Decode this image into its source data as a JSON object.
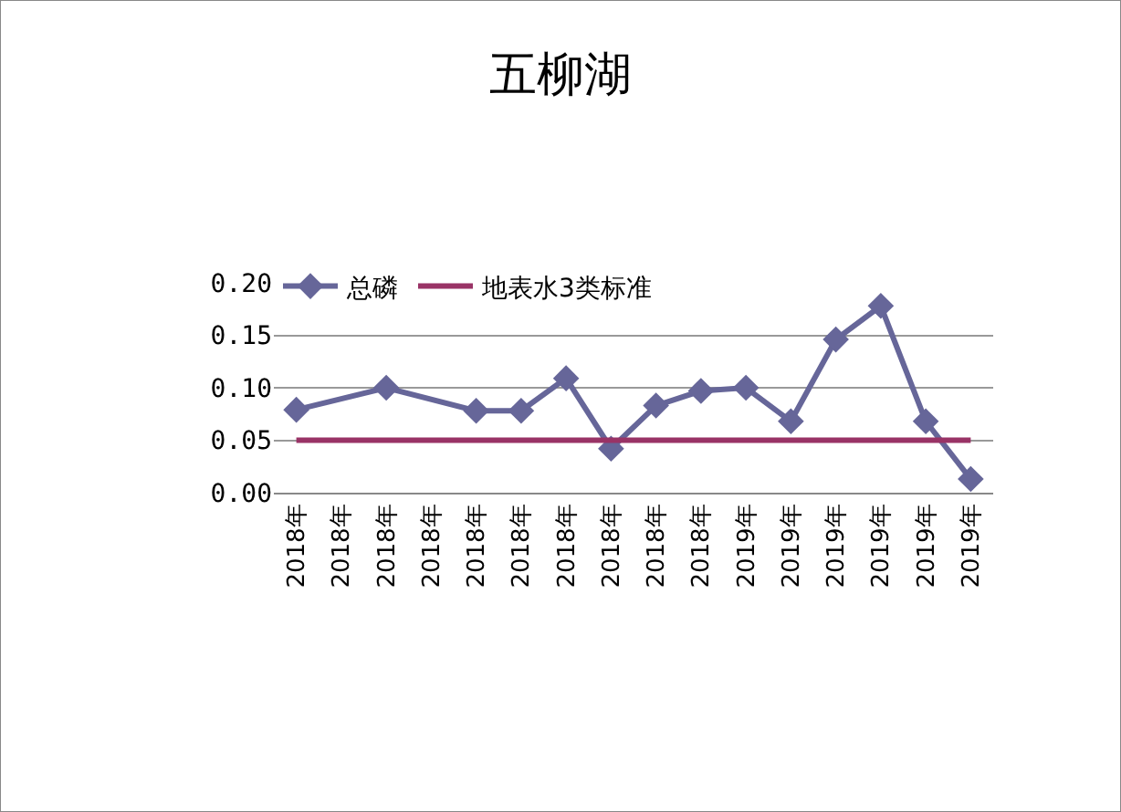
{
  "chart_data": {
    "type": "line",
    "title": "五柳湖",
    "categories": [
      "2018年",
      "2018年",
      "2018年",
      "2018年",
      "2018年",
      "2018年",
      "2018年",
      "2018年",
      "2018年",
      "2018年",
      "2019年",
      "2019年",
      "2019年",
      "2019年",
      "2019年",
      "2019年"
    ],
    "series": [
      {
        "name": "总磷",
        "color": "#666699",
        "marker": "diamond",
        "values": [
          0.079,
          null,
          0.1,
          null,
          0.078,
          0.078,
          0.109,
          0.042,
          0.083,
          0.097,
          0.1,
          0.068,
          0.146,
          0.178,
          0.068,
          0.013
        ]
      },
      {
        "name": "地表水3类标准",
        "color": "#993366",
        "marker": "none",
        "values": [
          0.05,
          0.05,
          0.05,
          0.05,
          0.05,
          0.05,
          0.05,
          0.05,
          0.05,
          0.05,
          0.05,
          0.05,
          0.05,
          0.05,
          0.05,
          0.05
        ]
      }
    ],
    "ylim": [
      0,
      0.2
    ],
    "yticks": [
      {
        "value": 0,
        "label": "0.00"
      },
      {
        "value": 0.05,
        "label": "0.05"
      },
      {
        "value": 0.1,
        "label": "0.10"
      },
      {
        "value": 0.15,
        "label": "0.15"
      },
      {
        "value": 0.2,
        "label": "0.20"
      }
    ],
    "grid": "y",
    "legend": "top left"
  }
}
